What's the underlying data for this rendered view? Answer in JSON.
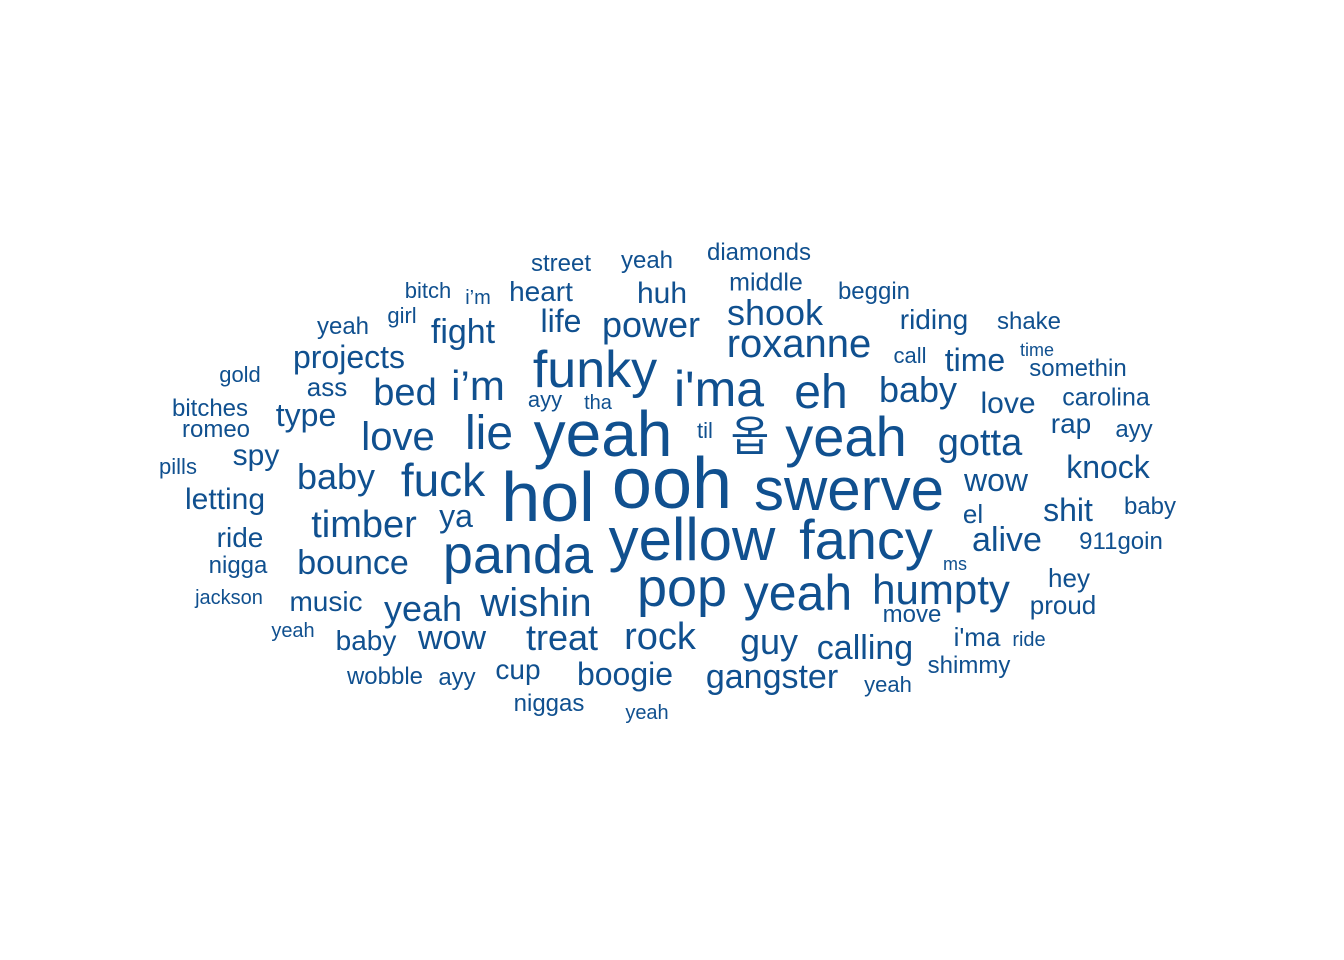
{
  "color": "#10508f",
  "words": [
    {
      "text": "ooh",
      "weight": 72
    },
    {
      "text": "hol",
      "weight": 70
    },
    {
      "text": "yeah",
      "weight": 64
    },
    {
      "text": "swerve",
      "weight": 60
    },
    {
      "text": "yellow",
      "weight": 60
    },
    {
      "text": "fancy",
      "weight": 56
    },
    {
      "text": "panda",
      "weight": 54
    },
    {
      "text": "pop",
      "weight": 54
    },
    {
      "text": "yeah",
      "weight": 56
    },
    {
      "text": "funky",
      "weight": 52
    },
    {
      "text": "i'ma",
      "weight": 50
    },
    {
      "text": "eh",
      "weight": 48
    },
    {
      "text": "lie",
      "weight": 48
    },
    {
      "text": "yeah",
      "weight": 50
    },
    {
      "text": "옵",
      "weight": 42
    },
    {
      "text": "fuck",
      "weight": 46
    },
    {
      "text": "humpty",
      "weight": 42
    },
    {
      "text": "roxanne",
      "weight": 40
    },
    {
      "text": "wishin",
      "weight": 40
    },
    {
      "text": "i’m",
      "weight": 42
    },
    {
      "text": "love",
      "weight": 40
    },
    {
      "text": "timber",
      "weight": 38
    },
    {
      "text": "gotta",
      "weight": 38
    },
    {
      "text": "rock",
      "weight": 38
    },
    {
      "text": "baby",
      "weight": 36
    },
    {
      "text": "bed",
      "weight": 38
    },
    {
      "text": "yeah",
      "weight": 36
    },
    {
      "text": "treat",
      "weight": 36
    },
    {
      "text": "shook",
      "weight": 36
    },
    {
      "text": "bounce",
      "weight": 34
    },
    {
      "text": "power",
      "weight": 36
    },
    {
      "text": "baby",
      "weight": 36
    },
    {
      "text": "guy",
      "weight": 36
    },
    {
      "text": "calling",
      "weight": 34
    },
    {
      "text": "gangster",
      "weight": 34
    },
    {
      "text": "wow",
      "weight": 34
    },
    {
      "text": "boogie",
      "weight": 32
    },
    {
      "text": "alive",
      "weight": 34
    },
    {
      "text": "fight",
      "weight": 34
    },
    {
      "text": "knock",
      "weight": 32
    },
    {
      "text": "time",
      "weight": 32
    },
    {
      "text": "type",
      "weight": 32
    },
    {
      "text": "shit",
      "weight": 32
    },
    {
      "text": "wow",
      "weight": 32
    },
    {
      "text": "projects",
      "weight": 32
    },
    {
      "text": "ya",
      "weight": 32
    },
    {
      "text": "life",
      "weight": 32
    },
    {
      "text": "huh",
      "weight": 30
    },
    {
      "text": "spy",
      "weight": 30
    },
    {
      "text": "letting",
      "weight": 30
    },
    {
      "text": "love",
      "weight": 30
    },
    {
      "text": "music",
      "weight": 28
    },
    {
      "text": "heart",
      "weight": 28
    },
    {
      "text": "riding",
      "weight": 28
    },
    {
      "text": "cup",
      "weight": 28
    },
    {
      "text": "ride",
      "weight": 28
    },
    {
      "text": "baby",
      "weight": 28
    },
    {
      "text": "rap",
      "weight": 28
    },
    {
      "text": "el",
      "weight": 26
    },
    {
      "text": "ass",
      "weight": 26
    },
    {
      "text": "i'ma",
      "weight": 26
    },
    {
      "text": "proud",
      "weight": 26
    },
    {
      "text": "hey",
      "weight": 26
    },
    {
      "text": "middle",
      "weight": 25
    },
    {
      "text": "carolina",
      "weight": 25
    },
    {
      "text": "move",
      "weight": 24
    },
    {
      "text": "beggin",
      "weight": 24
    },
    {
      "text": "somethin",
      "weight": 24
    },
    {
      "text": "shimmy",
      "weight": 24
    },
    {
      "text": "diamonds",
      "weight": 24
    },
    {
      "text": "niggas",
      "weight": 24
    },
    {
      "text": "ayy",
      "weight": 24
    },
    {
      "text": "bitches",
      "weight": 24
    },
    {
      "text": "nigga",
      "weight": 24
    },
    {
      "text": "street",
      "weight": 24
    },
    {
      "text": "yeah",
      "weight": 24
    },
    {
      "text": "baby",
      "weight": 24
    },
    {
      "text": "911goin",
      "weight": 24
    },
    {
      "text": "yeah",
      "weight": 24
    },
    {
      "text": "shake",
      "weight": 24
    },
    {
      "text": "romeo",
      "weight": 24
    },
    {
      "text": "wobble",
      "weight": 24
    },
    {
      "text": "ayy",
      "weight": 24
    },
    {
      "text": "yeah",
      "weight": 22
    },
    {
      "text": "bitch",
      "weight": 22
    },
    {
      "text": "girl",
      "weight": 22
    },
    {
      "text": "til",
      "weight": 22
    },
    {
      "text": "call",
      "weight": 22
    },
    {
      "text": "gold",
      "weight": 22
    },
    {
      "text": "ayy",
      "weight": 22
    },
    {
      "text": "pills",
      "weight": 22
    },
    {
      "text": "ride",
      "weight": 20
    },
    {
      "text": "tha",
      "weight": 20
    },
    {
      "text": "yeah",
      "weight": 20
    },
    {
      "text": "i’m",
      "weight": 20
    },
    {
      "text": "jackson",
      "weight": 20
    },
    {
      "text": "yeah",
      "weight": 20
    },
    {
      "text": "time",
      "weight": 18
    },
    {
      "text": "ms",
      "weight": 18
    }
  ]
}
